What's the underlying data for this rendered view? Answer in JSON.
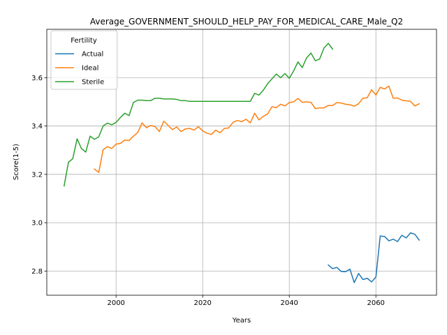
{
  "chart_data": {
    "type": "line",
    "title": "Average_GOVERNMENT_SHOULD_HELP_PAY_FOR_MEDICAL_CARE_Male_Q2",
    "xlabel": "Years",
    "ylabel": "Score(1-5)",
    "xlim": [
      1984,
      2074
    ],
    "ylim": [
      2.7,
      3.8
    ],
    "xticks": [
      2000,
      2020,
      2040,
      2060
    ],
    "yticks": [
      2.8,
      3.0,
      3.2,
      3.4,
      3.6
    ],
    "grid": true,
    "legend": {
      "title": "Fertility",
      "position": "top-left"
    },
    "series": [
      {
        "name": "Actual",
        "color": "#1f77b4",
        "x": [
          2049,
          2050,
          2051,
          2052,
          2053,
          2054,
          2055,
          2056,
          2057,
          2058,
          2059,
          2060,
          2061,
          2062,
          2063,
          2064,
          2065,
          2066,
          2067,
          2068,
          2069,
          2070
        ],
        "y": [
          2.825,
          2.81,
          2.815,
          2.798,
          2.797,
          2.808,
          2.752,
          2.79,
          2.765,
          2.77,
          2.755,
          2.775,
          2.945,
          2.943,
          2.925,
          2.932,
          2.922,
          2.948,
          2.937,
          2.958,
          2.952,
          2.928
        ]
      },
      {
        "name": "Ideal",
        "color": "#ff7f0e",
        "x": [
          1995,
          1996,
          1997,
          1998,
          1999,
          2000,
          2001,
          2002,
          2003,
          2004,
          2005,
          2006,
          2007,
          2008,
          2009,
          2010,
          2011,
          2012,
          2013,
          2014,
          2015,
          2016,
          2017,
          2018,
          2019,
          2020,
          2021,
          2022,
          2023,
          2024,
          2025,
          2026,
          2027,
          2028,
          2029,
          2030,
          2031,
          2032,
          2033,
          2034,
          2035,
          2036,
          2037,
          2038,
          2039,
          2040,
          2041,
          2042,
          2043,
          2044,
          2045,
          2046,
          2047,
          2048,
          2049,
          2050,
          2051,
          2052,
          2053,
          2054,
          2055,
          2056,
          2057,
          2058,
          2059,
          2060,
          2061,
          2062,
          2063,
          2064,
          2065,
          2066,
          2067,
          2068,
          2069,
          2070
        ],
        "y": [
          3.222,
          3.208,
          3.302,
          3.315,
          3.307,
          3.325,
          3.328,
          3.342,
          3.34,
          3.358,
          3.373,
          3.413,
          3.393,
          3.402,
          3.398,
          3.377,
          3.42,
          3.403,
          3.385,
          3.396,
          3.377,
          3.388,
          3.39,
          3.383,
          3.397,
          3.38,
          3.37,
          3.365,
          3.383,
          3.372,
          3.39,
          3.392,
          3.415,
          3.423,
          3.418,
          3.428,
          3.413,
          3.453,
          3.425,
          3.44,
          3.45,
          3.48,
          3.476,
          3.49,
          3.483,
          3.497,
          3.5,
          3.514,
          3.498,
          3.5,
          3.498,
          3.472,
          3.475,
          3.475,
          3.485,
          3.485,
          3.497,
          3.495,
          3.49,
          3.488,
          3.482,
          3.492,
          3.515,
          3.517,
          3.55,
          3.528,
          3.56,
          3.553,
          3.565,
          3.515,
          3.516,
          3.507,
          3.504,
          3.502,
          3.483,
          3.492
        ]
      },
      {
        "name": "Sterile",
        "color": "#2ca02c",
        "x": [
          1988,
          1989,
          1990,
          1991,
          1992,
          1993,
          1994,
          1995,
          1996,
          1997,
          1998,
          1999,
          2000,
          2001,
          2002,
          2003,
          2004,
          2005,
          2006,
          2007,
          2008,
          2009,
          2010,
          2011,
          2012,
          2013,
          2014,
          2015,
          2016,
          2017,
          2018,
          2019,
          2020,
          2021,
          2022,
          2023,
          2024,
          2025,
          2026,
          2027,
          2028,
          2029,
          2030,
          2031,
          2032,
          2033,
          2034,
          2035,
          2036,
          2037,
          2038,
          2039,
          2040,
          2041,
          2042,
          2043,
          2044,
          2045,
          2046,
          2047,
          2048,
          2049,
          2050
        ],
        "y": [
          3.152,
          3.25,
          3.265,
          3.347,
          3.307,
          3.292,
          3.358,
          3.345,
          3.355,
          3.4,
          3.412,
          3.405,
          3.415,
          3.435,
          3.453,
          3.443,
          3.497,
          3.507,
          3.507,
          3.505,
          3.505,
          3.515,
          3.515,
          3.512,
          3.512,
          3.512,
          3.51,
          3.505,
          3.505,
          3.502,
          3.502,
          3.502,
          3.502,
          3.502,
          3.502,
          3.502,
          3.502,
          3.502,
          3.502,
          3.502,
          3.502,
          3.502,
          3.502,
          3.502,
          3.535,
          3.528,
          3.548,
          3.575,
          3.595,
          3.615,
          3.6,
          3.617,
          3.597,
          3.628,
          3.665,
          3.642,
          3.682,
          3.702,
          3.67,
          3.677,
          3.722,
          3.742,
          3.718
        ]
      }
    ]
  }
}
